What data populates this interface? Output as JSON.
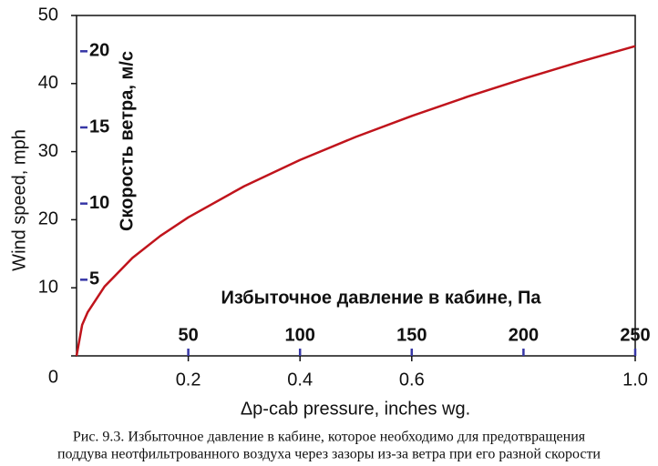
{
  "chart_data": {
    "type": "line",
    "x_label": "Δp-cab pressure, inches wg.",
    "y_label": "Wind speed, mph",
    "y2_label": "Скорость ветра, м/с",
    "x2_label": "Избыточное давление в кабине, Па",
    "x": [
      0,
      0.01,
      0.02,
      0.05,
      0.1,
      0.15,
      0.2,
      0.3,
      0.4,
      0.5,
      0.6,
      0.7,
      0.8,
      0.9,
      1.0
    ],
    "series": [
      {
        "name": "Wind speed",
        "color": "#c0141c",
        "values": [
          0,
          4.55,
          6.43,
          10.17,
          14.39,
          17.62,
          20.35,
          24.92,
          28.78,
          32.17,
          35.24,
          38.07,
          40.7,
          43.17,
          45.5
        ]
      }
    ],
    "xlim": [
      0,
      1.0
    ],
    "xticks": [
      0.2,
      0.4,
      0.6,
      {
        "value": 1,
        "label": "1.0"
      }
    ],
    "ylim": [
      0,
      50
    ],
    "yticks": [
      0,
      10,
      20,
      30,
      40,
      50
    ],
    "y2lim": [
      0,
      22.35
    ],
    "y2ticks": [
      5,
      10,
      15,
      20
    ],
    "x2lim": [
      0,
      250
    ],
    "x2ticks": [
      50,
      100,
      150,
      200,
      250
    ],
    "secondary_color": "#3636a6",
    "caption": [
      "Рис. 9.3. Избыточное давление в кабине, которое необходимо для предотвращения",
      "поддува неотфильтрованного воздуха через зазоры из-за ветра при его разной скорости"
    ]
  }
}
